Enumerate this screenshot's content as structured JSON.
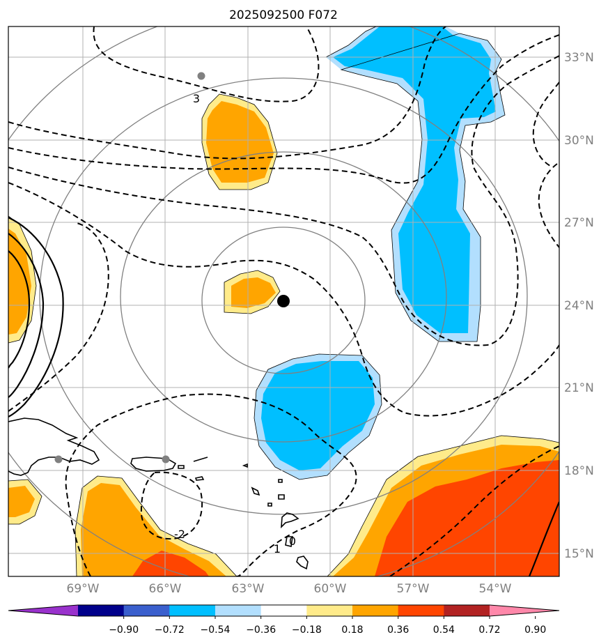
{
  "title": "2025092500 F072",
  "lat_labels": [
    "33°N",
    "30°N",
    "27°N",
    "24°N",
    "21°N",
    "18°N",
    "15°N"
  ],
  "lon_labels": [
    "69°W",
    "66°W",
    "63°W",
    "60°W",
    "57°W",
    "54°W"
  ],
  "colorbar": {
    "ticks": [
      "−0.90",
      "−0.72",
      "−0.54",
      "−0.36",
      "−0.18",
      "0.18",
      "0.36",
      "0.54",
      "0.72",
      "0.90"
    ],
    "colors": [
      "#9932cc",
      "#00008b",
      "#3a5fcd",
      "#00bfff",
      "#b2dffe",
      "#ffffff",
      "#ffeb8a",
      "#ffa500",
      "#ff4500",
      "#b22222",
      "#ff88aa"
    ]
  },
  "contour_labels": [
    "3",
    "-2",
    "1",
    "0"
  ],
  "fill_colors": {
    "orange": "#ffa500",
    "lightyellow": "#ffeb8a",
    "cyan": "#00bfff",
    "lightblue": "#b2dffe",
    "red": "#ff4500"
  }
}
